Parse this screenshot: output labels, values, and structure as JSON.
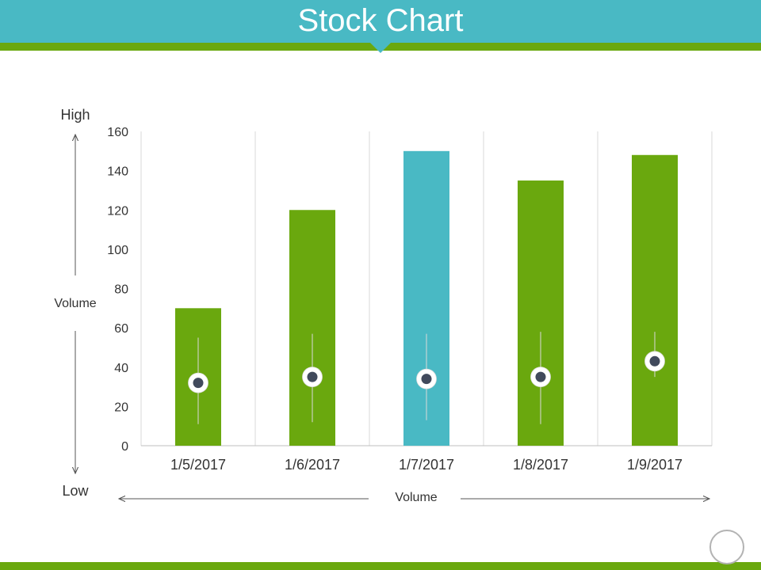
{
  "page": {
    "title": "Stock Chart",
    "high_label": "High",
    "low_label": "Low",
    "side_axis_label": "Volume",
    "bottom_axis_label": "Volume"
  },
  "colors": {
    "header": "#49b9c4",
    "accent_green": "#6aa80e",
    "bar_green": "#6aa80e",
    "bar_highlight": "#49b9c4",
    "marker": "#414a5c"
  },
  "chart_data": {
    "type": "bar",
    "categories": [
      "1/5/2017",
      "1/6/2017",
      "1/7/2017",
      "1/8/2017",
      "1/9/2017"
    ],
    "series": [
      {
        "values": [
          70,
          120,
          150,
          135,
          148
        ]
      }
    ],
    "stock": {
      "high": [
        55,
        57,
        57,
        58,
        58
      ],
      "low": [
        11,
        12,
        13,
        11,
        35
      ],
      "close": [
        32,
        35,
        34,
        35,
        43
      ]
    },
    "highlight_index": 2,
    "yticks": [
      0,
      20,
      40,
      60,
      80,
      100,
      120,
      140,
      160
    ],
    "ylim": [
      0,
      160
    ],
    "grid": "vertical"
  }
}
